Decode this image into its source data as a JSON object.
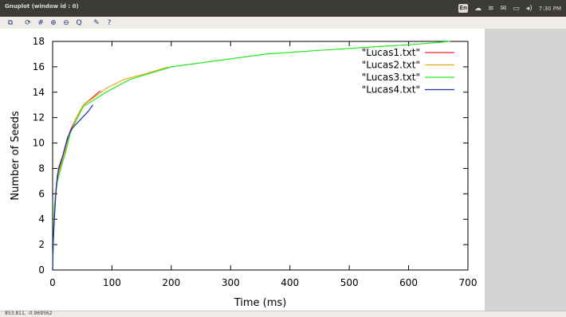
{
  "window": {
    "title": "Gnuplot (window id : 0)"
  },
  "system_tray": {
    "keyboard_layout": "En",
    "clock": "7:30 PM",
    "icons": [
      "cloud-icon",
      "wifi-icon",
      "mail-icon",
      "battery-icon",
      "volume-icon"
    ]
  },
  "toolbar": {
    "buttons": [
      {
        "name": "copy-clipboard-button",
        "glyph": "⧉"
      },
      {
        "name": "replot-button",
        "glyph": "⟳"
      },
      {
        "name": "grid-button",
        "glyph": "#"
      },
      {
        "name": "zoom-in-button",
        "glyph": "⊕"
      },
      {
        "name": "zoom-out-button",
        "glyph": "⊖"
      },
      {
        "name": "zoom-reset-button",
        "glyph": "Q"
      },
      {
        "name": "settings-button",
        "glyph": "✎"
      },
      {
        "name": "help-button",
        "glyph": "?"
      }
    ]
  },
  "status_bar": {
    "coordinates": "853.811, -0.969562"
  },
  "chart_data": {
    "type": "line",
    "xlabel": "Time (ms)",
    "ylabel": "Number of Seeds",
    "xlim": [
      0,
      700
    ],
    "ylim": [
      0,
      18
    ],
    "x_ticks": [
      0,
      100,
      200,
      300,
      400,
      500,
      600,
      700
    ],
    "y_ticks": [
      0,
      2,
      4,
      6,
      8,
      10,
      12,
      14,
      16,
      18
    ],
    "grid": false,
    "legend_position": "top-right",
    "series": [
      {
        "name": "\"Lucas1.txt\"",
        "color": "#e8261e",
        "x": [
          0,
          1,
          3,
          8,
          15,
          22,
          30,
          40,
          52,
          65,
          80
        ],
        "y": [
          0,
          2,
          5,
          7.5,
          8.6,
          9.8,
          11,
          12,
          13,
          13.5,
          14.1
        ]
      },
      {
        "name": "\"Lucas2.txt\"",
        "color": "#f2a81d",
        "x": [
          0,
          1,
          3,
          8,
          15,
          22,
          30,
          40,
          52,
          70,
          90,
          120,
          160,
          195
        ],
        "y": [
          0,
          2,
          5,
          7.2,
          8.3,
          9.5,
          10.8,
          12,
          13,
          13.6,
          14.3,
          15,
          15.5,
          16
        ]
      },
      {
        "name": "\"Lucas3.txt\"",
        "color": "#26e81e",
        "x": [
          0,
          1,
          3,
          8,
          15,
          22,
          30,
          40,
          52,
          70,
          90,
          130,
          200,
          280,
          360,
          450,
          550,
          620,
          670
        ],
        "y": [
          0,
          2,
          5,
          7,
          8.2,
          9.3,
          10.8,
          11.8,
          12.9,
          13.4,
          14,
          15,
          16,
          16.5,
          17,
          17.3,
          17.6,
          17.8,
          18
        ]
      },
      {
        "name": "\"Lucas4.txt\"",
        "color": "#1e2fb4",
        "x": [
          0,
          1,
          3,
          6,
          10,
          17,
          25,
          32,
          40,
          50,
          60,
          68
        ],
        "y": [
          0,
          2,
          4,
          6.5,
          8,
          9,
          10.4,
          11.1,
          11.5,
          12,
          12.5,
          13
        ]
      }
    ]
  }
}
